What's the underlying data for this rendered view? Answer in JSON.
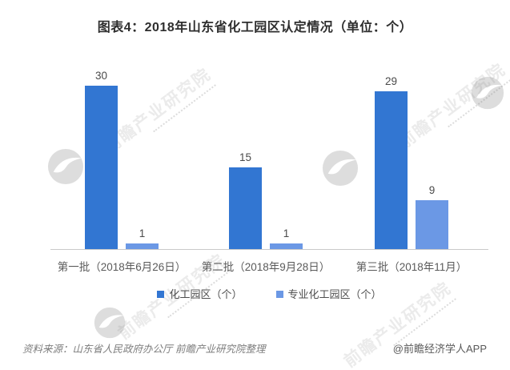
{
  "title": "图表4：2018年山东省化工园区认定情况（单位：个）",
  "chart_data": {
    "type": "bar",
    "title": "图表4：2018年山东省化工园区认定情况（单位：个）",
    "categories": [
      "第一批（2018年6月26日）",
      "第二批（2018年9月28日）",
      "第三批（2018年11月）"
    ],
    "series": [
      {
        "name": "化工园区（个）",
        "values": [
          30,
          15,
          29
        ],
        "color": "#3276D2"
      },
      {
        "name": "专业化工园区（个）",
        "values": [
          1,
          1,
          9
        ],
        "color": "#6B98E5"
      }
    ],
    "ylim": [
      0,
      32
    ],
    "grid": false,
    "legend_position": "bottom",
    "value_labels": true,
    "axis_line_color": "#c9c9c9"
  },
  "footer": {
    "source": "资料来源：山东省人民政府办公厅  前瞻产业研究院整理",
    "credit": "@前瞻经济学人APP"
  },
  "watermark": {
    "text": "前瞻产业研究院",
    "logo": "globe-swoosh-logo",
    "color": "rgba(128,128,128,0.16)"
  }
}
